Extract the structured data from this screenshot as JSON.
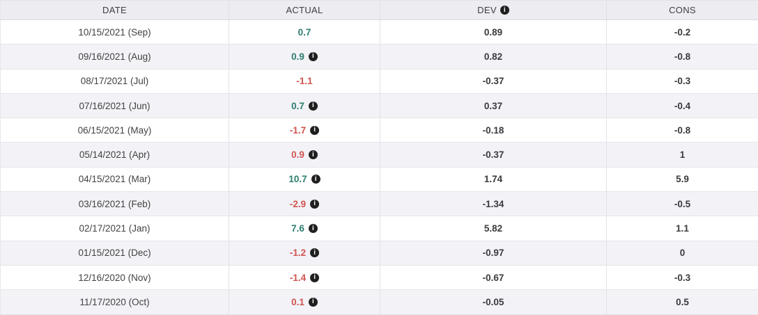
{
  "icons": {
    "info_glyph": "i"
  },
  "colors": {
    "positive_value": "#2d7d6e",
    "negative_value": "#d1544f",
    "header_bg": "#ececf1",
    "stripe_bg": "#f2f2f7"
  },
  "table": {
    "columns": [
      {
        "label": "DATE",
        "has_info_icon": false
      },
      {
        "label": "ACTUAL",
        "has_info_icon": false
      },
      {
        "label": "DEV",
        "has_info_icon": true
      },
      {
        "label": "CONS",
        "has_info_icon": false
      }
    ],
    "rows": [
      {
        "date": "10/15/2021 (Sep)",
        "actual": "0.7",
        "actual_color": "green",
        "has_info": false,
        "dev": "0.89",
        "cons": "-0.2"
      },
      {
        "date": "09/16/2021 (Aug)",
        "actual": "0.9",
        "actual_color": "green",
        "has_info": true,
        "dev": "0.82",
        "cons": "-0.8"
      },
      {
        "date": "08/17/2021 (Jul)",
        "actual": "-1.1",
        "actual_color": "red",
        "has_info": false,
        "dev": "-0.37",
        "cons": "-0.3"
      },
      {
        "date": "07/16/2021 (Jun)",
        "actual": "0.7",
        "actual_color": "green",
        "has_info": true,
        "dev": "0.37",
        "cons": "-0.4"
      },
      {
        "date": "06/15/2021 (May)",
        "actual": "-1.7",
        "actual_color": "red",
        "has_info": true,
        "dev": "-0.18",
        "cons": "-0.8"
      },
      {
        "date": "05/14/2021 (Apr)",
        "actual": "0.9",
        "actual_color": "red",
        "has_info": true,
        "dev": "-0.37",
        "cons": "1"
      },
      {
        "date": "04/15/2021 (Mar)",
        "actual": "10.7",
        "actual_color": "green",
        "has_info": true,
        "dev": "1.74",
        "cons": "5.9"
      },
      {
        "date": "03/16/2021 (Feb)",
        "actual": "-2.9",
        "actual_color": "red",
        "has_info": true,
        "dev": "-1.34",
        "cons": "-0.5"
      },
      {
        "date": "02/17/2021 (Jan)",
        "actual": "7.6",
        "actual_color": "green",
        "has_info": true,
        "dev": "5.82",
        "cons": "1.1"
      },
      {
        "date": "01/15/2021 (Dec)",
        "actual": "-1.2",
        "actual_color": "red",
        "has_info": true,
        "dev": "-0.97",
        "cons": "0"
      },
      {
        "date": "12/16/2020 (Nov)",
        "actual": "-1.4",
        "actual_color": "red",
        "has_info": true,
        "dev": "-0.67",
        "cons": "-0.3"
      },
      {
        "date": "11/17/2020 (Oct)",
        "actual": "0.1",
        "actual_color": "red",
        "has_info": true,
        "dev": "-0.05",
        "cons": "0.5"
      }
    ]
  }
}
